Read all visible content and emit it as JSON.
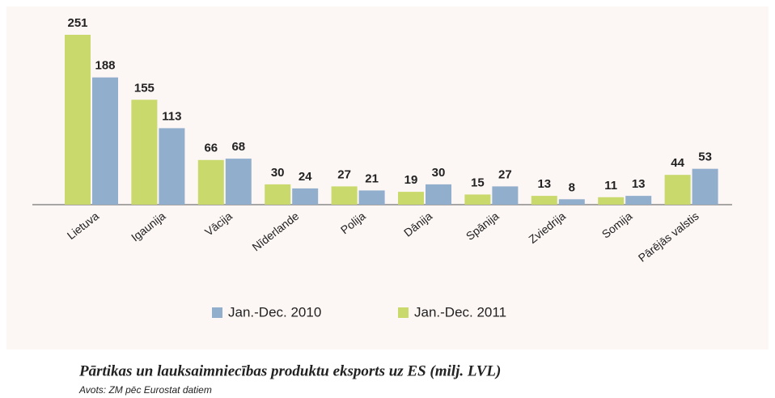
{
  "chart_data": {
    "type": "bar",
    "title": "Pārtikas un lauksaimniecības produktu eksports uz ES (milj. LVL)",
    "subtitle": "Avots: ZM pēc Eurostat datiem",
    "categories": [
      "Lietuva",
      "Igaunija",
      "Vācija",
      "Nīderlande",
      "Polija",
      "Dānija",
      "Spānija",
      "Zviedrija",
      "Somija",
      "Pārējās valstis"
    ],
    "series": [
      {
        "name": "Jan.-Dec. 2011",
        "color": "#c9d96b",
        "values": [
          251,
          155,
          66,
          30,
          27,
          19,
          15,
          13,
          11,
          44
        ]
      },
      {
        "name": "Jan.-Dec. 2010",
        "color": "#92aecd",
        "values": [
          188,
          113,
          68,
          24,
          21,
          30,
          27,
          8,
          13,
          53
        ]
      }
    ],
    "legend": "bottom"
  }
}
